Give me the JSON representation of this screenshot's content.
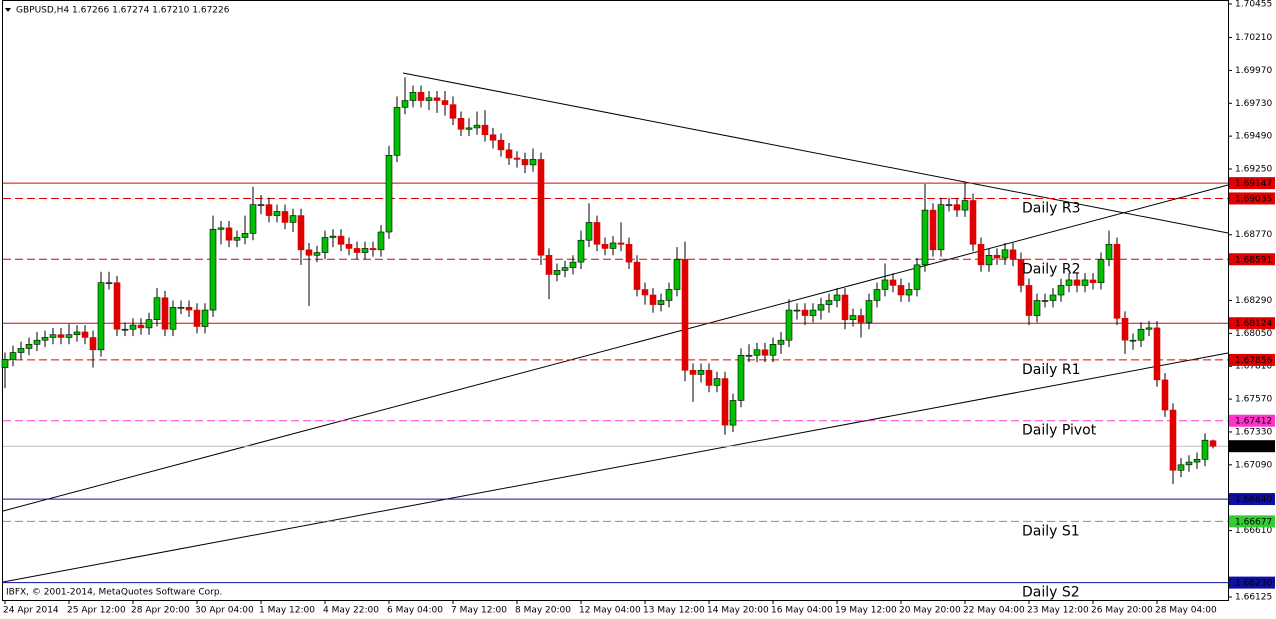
{
  "chart_data": {
    "type": "candlestick",
    "title": "GBPUSD,H4  1.67266 1.67274 1.67210 1.67226",
    "footer": "IBFX, © 2001-2014, MetaQuotes Software Corp.",
    "colors": {
      "up": "#00c000",
      "down": "#e00000",
      "wick": "#000000"
    },
    "ylim": [
      1.66103,
      1.70484
    ],
    "yticks": [
      {
        "value": 1.70455,
        "label": "1.70455"
      },
      {
        "value": 1.7021,
        "label": "1.70210"
      },
      {
        "value": 1.6997,
        "label": "1.69970"
      },
      {
        "value": 1.6973,
        "label": "1.69730"
      },
      {
        "value": 1.6949,
        "label": "1.69490"
      },
      {
        "value": 1.6925,
        "label": "1.69250"
      },
      {
        "value": 1.6877,
        "label": "1.68770"
      },
      {
        "value": 1.6829,
        "label": "1.68290"
      },
      {
        "value": 1.6805,
        "label": "1.68050"
      },
      {
        "value": 1.6781,
        "label": "1.67810"
      },
      {
        "value": 1.6757,
        "label": "1.67570"
      },
      {
        "value": 1.6733,
        "label": "1.67330"
      },
      {
        "value": 1.6709,
        "label": "1.67090"
      },
      {
        "value": 1.6661,
        "label": "1.66610"
      },
      {
        "value": 1.66125,
        "label": "1.66125"
      }
    ],
    "categories": [
      "24 Apr 2014",
      null,
      null,
      null,
      null,
      null,
      null,
      null,
      "25 Apr 12:00",
      null,
      null,
      null,
      null,
      null,
      null,
      null,
      "28 Apr 20:00",
      null,
      null,
      null,
      null,
      null,
      null,
      null,
      "30 Apr 04:00",
      null,
      null,
      null,
      null,
      null,
      null,
      null,
      "1 May 12:00",
      null,
      null,
      null,
      null,
      null,
      null,
      null,
      "4 May 22:00",
      null,
      null,
      null,
      null,
      null,
      null,
      null,
      "6 May 04:00",
      null,
      null,
      null,
      null,
      null,
      null,
      null,
      "7 May 12:00",
      null,
      null,
      null,
      null,
      null,
      null,
      null,
      "8 May 20:00",
      null,
      null,
      null,
      null,
      null,
      null,
      null,
      "12 May 04:00",
      null,
      null,
      null,
      null,
      null,
      null,
      null,
      "13 May 12:00",
      null,
      null,
      null,
      null,
      null,
      null,
      null,
      "14 May 20:00",
      null,
      null,
      null,
      null,
      null,
      null,
      null,
      "16 May 04:00",
      null,
      null,
      null,
      null,
      null,
      null,
      null,
      "19 May 12:00",
      null,
      null,
      null,
      null,
      null,
      null,
      null,
      "20 May 20:00",
      null,
      null,
      null,
      null,
      null,
      null,
      null,
      "22 May 04:00",
      null,
      null,
      null,
      null,
      null,
      null,
      null,
      "23 May 12:00",
      null,
      null,
      null,
      null,
      null,
      null,
      null,
      "26 May 20:00",
      null,
      null,
      null,
      null,
      null,
      null,
      null,
      "28 May 04:00",
      null,
      null,
      null,
      null,
      null,
      null,
      null
    ],
    "open": [
      1.678,
      1.6786,
      1.6791,
      1.6794,
      1.6797,
      1.68,
      1.6802,
      1.6804,
      1.6802,
      1.6804,
      1.6806,
      1.6802,
      1.6793,
      1.6842,
      1.6842,
      1.6808,
      1.6808,
      1.6811,
      1.6809,
      1.6815,
      1.6831,
      1.6808,
      1.6824,
      1.6824,
      1.6822,
      1.681,
      1.6822,
      1.6881,
      1.6882,
      1.6873,
      1.6875,
      1.6878,
      1.6899,
      1.6899,
      1.6891,
      1.6894,
      1.6886,
      1.6891,
      1.6866,
      1.6862,
      1.6864,
      1.6875,
      1.6876,
      1.687,
      1.6867,
      1.6864,
      1.6867,
      1.6866,
      1.6879,
      1.6935,
      1.697,
      1.6975,
      1.6981,
      1.6975,
      1.6977,
      1.6975,
      1.6972,
      1.6962,
      1.6954,
      1.6955,
      1.6957,
      1.695,
      1.6946,
      1.6939,
      1.6933,
      1.6932,
      1.6928,
      1.6932,
      1.6862,
      1.6848,
      1.6851,
      1.6853,
      1.6857,
      1.6873,
      1.6886,
      1.687,
      1.6867,
      1.6871,
      1.687,
      1.6857,
      1.6837,
      1.6833,
      1.6826,
      1.6829,
      1.6837,
      1.6859,
      1.6778,
      1.6775,
      1.6778,
      1.6767,
      1.6772,
      1.6738,
      1.6756,
      1.6789,
      1.6789,
      1.6793,
      1.6789,
      1.6797,
      1.68,
      1.6822,
      1.6822,
      1.6818,
      1.6822,
      1.6826,
      1.6829,
      1.6833,
      1.6815,
      1.6818,
      1.6813,
      1.6829,
      1.6837,
      1.6844,
      1.684,
      1.6833,
      1.6837,
      1.6855,
      1.6895,
      1.6866,
      1.6899,
      1.6899,
      1.6895,
      1.6902,
      1.687,
      1.6855,
      1.6862,
      1.686,
      1.6866,
      1.6859,
      1.684,
      1.6818,
      1.6829,
      1.6829,
      1.6833,
      1.684,
      1.6844,
      1.684,
      1.6844,
      1.6842,
      1.6859,
      1.687,
      1.6816,
      1.68,
      1.68,
      1.6808,
      1.6809,
      1.6771,
      1.6749,
      1.6705,
      1.6709,
      1.6711,
      1.6713,
      1.67266
    ],
    "high": [
      1.6791,
      1.6796,
      1.6799,
      1.6802,
      1.6806,
      1.6807,
      1.6809,
      1.6809,
      1.6812,
      1.6811,
      1.6811,
      1.6807,
      1.685,
      1.685,
      1.6847,
      1.6813,
      1.6816,
      1.6816,
      1.682,
      1.6838,
      1.6836,
      1.6829,
      1.6829,
      1.6829,
      1.6827,
      1.6827,
      1.6891,
      1.6887,
      1.6887,
      1.688,
      1.6891,
      1.6912,
      1.6906,
      1.6904,
      1.6899,
      1.6899,
      1.6896,
      1.6896,
      1.6871,
      1.6869,
      1.688,
      1.6881,
      1.6881,
      1.6875,
      1.6872,
      1.6872,
      1.6872,
      1.6884,
      1.6942,
      1.6978,
      1.6992,
      1.6986,
      1.6986,
      1.6982,
      1.6982,
      1.6982,
      1.6978,
      1.6967,
      1.6962,
      1.6967,
      1.6968,
      1.6955,
      1.6951,
      1.6944,
      1.6938,
      1.6937,
      1.694,
      1.6937,
      1.6867,
      1.6856,
      1.6858,
      1.6862,
      1.688,
      1.69,
      1.6891,
      1.6875,
      1.6876,
      1.6886,
      1.6875,
      1.6862,
      1.6842,
      1.6838,
      1.6834,
      1.6842,
      1.6868,
      1.6872,
      1.6783,
      1.6783,
      1.6783,
      1.6777,
      1.6777,
      1.6761,
      1.6794,
      1.6797,
      1.6798,
      1.6798,
      1.6802,
      1.6806,
      1.683,
      1.6827,
      1.6827,
      1.6827,
      1.6831,
      1.6834,
      1.6838,
      1.6838,
      1.6823,
      1.6823,
      1.6834,
      1.6842,
      1.6856,
      1.6849,
      1.6845,
      1.6842,
      1.686,
      1.6914,
      1.69,
      1.6904,
      1.6904,
      1.6904,
      1.6915,
      1.6907,
      1.6875,
      1.6867,
      1.6867,
      1.6871,
      1.6871,
      1.6864,
      1.6845,
      1.6834,
      1.6834,
      1.6838,
      1.6845,
      1.6849,
      1.6849,
      1.6849,
      1.6849,
      1.6864,
      1.688,
      1.6875,
      1.6821,
      1.6805,
      1.6813,
      1.6814,
      1.6814,
      1.6776,
      1.6754,
      1.6714,
      1.6716,
      1.6718,
      1.6732,
      1.67274
    ],
    "low": [
      1.6765,
      1.6781,
      1.6786,
      1.6789,
      1.6792,
      1.6795,
      1.6797,
      1.6797,
      1.6797,
      1.6799,
      1.6797,
      1.678,
      1.6788,
      1.6837,
      1.6803,
      1.6803,
      1.6803,
      1.6804,
      1.6804,
      1.681,
      1.6803,
      1.6803,
      1.6819,
      1.6817,
      1.6805,
      1.6805,
      1.6817,
      1.687,
      1.6868,
      1.6868,
      1.687,
      1.6873,
      1.6892,
      1.6886,
      1.6886,
      1.6881,
      1.6879,
      1.6855,
      1.6825,
      1.6857,
      1.6859,
      1.6868,
      1.6865,
      1.6862,
      1.6859,
      1.6859,
      1.6861,
      1.6861,
      1.6874,
      1.693,
      1.6965,
      1.697,
      1.697,
      1.6968,
      1.6966,
      1.6964,
      1.6957,
      1.6949,
      1.6949,
      1.695,
      1.6945,
      1.694,
      1.6934,
      1.6928,
      1.6926,
      1.6922,
      1.6923,
      1.6855,
      1.683,
      1.6843,
      1.6846,
      1.6848,
      1.6852,
      1.6868,
      1.6865,
      1.6862,
      1.6862,
      1.6865,
      1.6852,
      1.6832,
      1.6826,
      1.682,
      1.6821,
      1.6824,
      1.6832,
      1.677,
      1.6755,
      1.6769,
      1.6762,
      1.6762,
      1.6731,
      1.6733,
      1.6751,
      1.6784,
      1.6784,
      1.6784,
      1.6784,
      1.679,
      1.6795,
      1.6815,
      1.6811,
      1.6813,
      1.6815,
      1.682,
      1.6824,
      1.6808,
      1.681,
      1.6802,
      1.6808,
      1.6824,
      1.6832,
      1.6835,
      1.6828,
      1.6828,
      1.6832,
      1.685,
      1.6861,
      1.6861,
      1.6894,
      1.689,
      1.689,
      1.6865,
      1.685,
      1.685,
      1.6855,
      1.6855,
      1.6854,
      1.6835,
      1.6811,
      1.6813,
      1.6824,
      1.6824,
      1.6828,
      1.6835,
      1.6835,
      1.6835,
      1.6837,
      1.6837,
      1.6854,
      1.6811,
      1.679,
      1.6793,
      1.6795,
      1.6803,
      1.6766,
      1.6744,
      1.6695,
      1.67,
      1.6704,
      1.6706,
      1.6708,
      1.6721
    ],
    "close": [
      1.6786,
      1.6791,
      1.6794,
      1.6797,
      1.68,
      1.6802,
      1.6804,
      1.6802,
      1.6804,
      1.6806,
      1.6802,
      1.6793,
      1.6842,
      1.6842,
      1.6808,
      1.6808,
      1.6811,
      1.6809,
      1.6815,
      1.6831,
      1.6808,
      1.6824,
      1.6824,
      1.6822,
      1.681,
      1.6822,
      1.6881,
      1.6882,
      1.6873,
      1.6875,
      1.6878,
      1.6899,
      1.6899,
      1.6891,
      1.6894,
      1.6886,
      1.6891,
      1.6866,
      1.6862,
      1.6864,
      1.6875,
      1.6876,
      1.687,
      1.6867,
      1.6864,
      1.6867,
      1.6866,
      1.6879,
      1.6935,
      1.697,
      1.6975,
      1.6981,
      1.6975,
      1.6977,
      1.6975,
      1.6972,
      1.6962,
      1.6954,
      1.6955,
      1.6957,
      1.695,
      1.6946,
      1.6939,
      1.6933,
      1.6932,
      1.6928,
      1.6932,
      1.6862,
      1.6848,
      1.6851,
      1.6853,
      1.6857,
      1.6873,
      1.6886,
      1.687,
      1.6867,
      1.6871,
      1.687,
      1.6857,
      1.6837,
      1.6833,
      1.6826,
      1.6829,
      1.6837,
      1.6859,
      1.6778,
      1.6775,
      1.6778,
      1.6767,
      1.6772,
      1.6738,
      1.6756,
      1.6789,
      1.6789,
      1.6793,
      1.6789,
      1.6797,
      1.68,
      1.6822,
      1.6822,
      1.6818,
      1.6822,
      1.6826,
      1.6829,
      1.6833,
      1.6815,
      1.6818,
      1.6813,
      1.6829,
      1.6837,
      1.6844,
      1.684,
      1.6833,
      1.6837,
      1.6855,
      1.6895,
      1.6866,
      1.6899,
      1.6899,
      1.6895,
      1.6902,
      1.687,
      1.6855,
      1.6862,
      1.686,
      1.6866,
      1.6859,
      1.684,
      1.6818,
      1.6829,
      1.6829,
      1.6833,
      1.684,
      1.6844,
      1.684,
      1.6844,
      1.6842,
      1.6859,
      1.687,
      1.6816,
      1.68,
      1.68,
      1.6808,
      1.6809,
      1.6771,
      1.6749,
      1.6705,
      1.6709,
      1.6711,
      1.6713,
      1.6727,
      1.67226
    ],
    "levels": [
      {
        "value": 1.69147,
        "label": "1.69147",
        "color": "#e00000",
        "style": "solid"
      },
      {
        "value": 1.69035,
        "label": "1.69035",
        "color": "#e00000",
        "style": "dashed",
        "name": "Daily R3",
        "name_color": "#e03030"
      },
      {
        "value": 1.68591,
        "label": "1.68591",
        "color": "#e00000",
        "style": "dashed",
        "name": "Daily R2",
        "name_color": "#e03030"
      },
      {
        "value": 1.68124,
        "label": "1.68124",
        "color": "#e00000",
        "style": "solid"
      },
      {
        "value": 1.67856,
        "label": "1.67856",
        "color": "#e00000",
        "style": "dashed",
        "name": "Daily R1",
        "name_color": "#e03030"
      },
      {
        "value": 1.67412,
        "label": "1.67412",
        "color": "#ff33cc",
        "style": "dashed",
        "name": "Daily Pivot",
        "name_color": "#e020c0"
      },
      {
        "value": 1.67226,
        "label": "1.67226",
        "color": "#c0c0c0",
        "box_color": "#000000",
        "style": "solid"
      },
      {
        "value": 1.6684,
        "label": "1.66840",
        "color": "#1010a0",
        "style": "solid"
      },
      {
        "value": 1.66677,
        "label": "1.66677",
        "color": "#33cc33",
        "style": "dashed",
        "name": "Daily S1",
        "name_color": "#202080"
      },
      {
        "value": 1.6623,
        "label": "1.66230",
        "color": "#1010a0",
        "style": "solid",
        "name": "Daily S2",
        "name_color": "#202080"
      }
    ]
  }
}
